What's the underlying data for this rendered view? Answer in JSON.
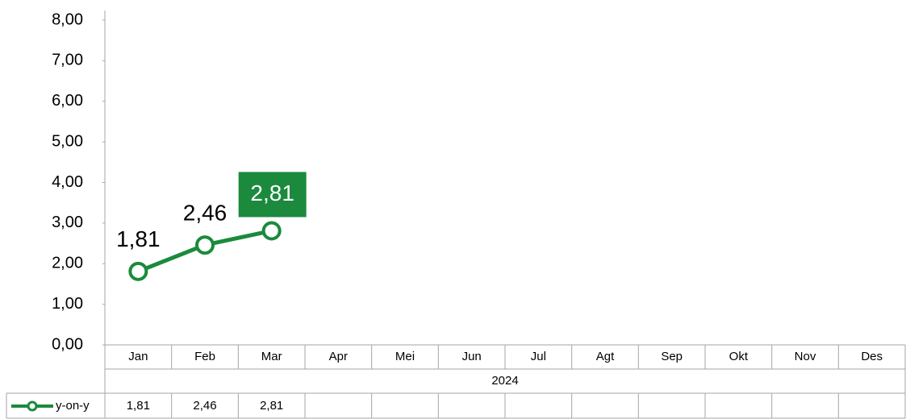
{
  "chart_data": {
    "type": "line",
    "categories": [
      "Jan",
      "Feb",
      "Mar",
      "Apr",
      "Mei",
      "Jun",
      "Jul",
      "Agt",
      "Sep",
      "Okt",
      "Nov",
      "Des"
    ],
    "category_group": "2024",
    "series": [
      {
        "name": "y-on-y",
        "color": "#1b8a3c",
        "values": [
          1.81,
          2.46,
          2.81,
          null,
          null,
          null,
          null,
          null,
          null,
          null,
          null,
          null
        ],
        "value_labels": [
          "1,81",
          "2,46",
          "2,81",
          null,
          null,
          null,
          null,
          null,
          null,
          null,
          null,
          null
        ]
      }
    ],
    "ylim": [
      0,
      8
    ],
    "yticks": [
      {
        "value": 0,
        "label": "0,00"
      },
      {
        "value": 1,
        "label": "1,00"
      },
      {
        "value": 2,
        "label": "2,00"
      },
      {
        "value": 3,
        "label": "3,00"
      },
      {
        "value": 4,
        "label": "4,00"
      },
      {
        "value": 5,
        "label": "5,00"
      },
      {
        "value": 6,
        "label": "6,00"
      },
      {
        "value": 7,
        "label": "7,00"
      },
      {
        "value": 8,
        "label": "8,00"
      }
    ],
    "grid": false,
    "data_table": true
  }
}
